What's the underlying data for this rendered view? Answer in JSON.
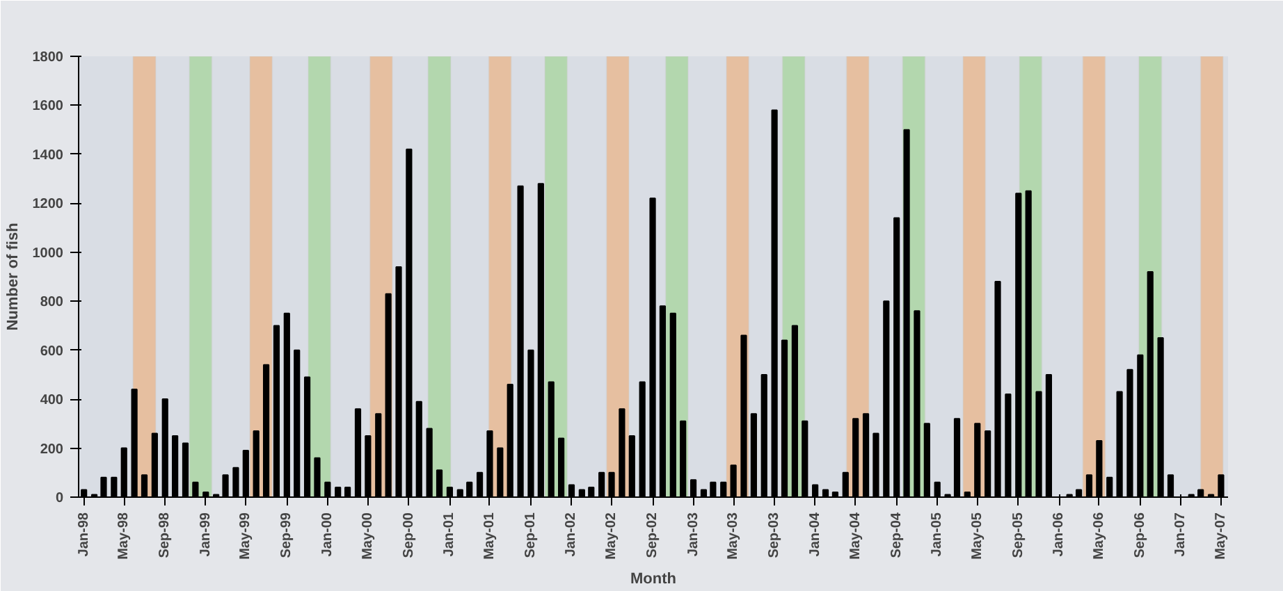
{
  "chart_data": {
    "type": "bar",
    "xlabel": "Month",
    "ylabel": "Number of fish",
    "grid": false,
    "x": [
      "1998-01",
      "1998-02",
      "1998-03",
      "1998-04",
      "1998-05",
      "1998-06",
      "1998-07",
      "1998-08",
      "1998-09",
      "1998-10",
      "1998-11",
      "1998-12",
      "1999-01",
      "1999-02",
      "1999-03",
      "1999-04",
      "1999-05",
      "1999-06",
      "1999-07",
      "1999-08",
      "1999-09",
      "1999-10",
      "1999-11",
      "1999-12",
      "2000-01",
      "2000-02",
      "2000-03",
      "2000-04",
      "2000-05",
      "2000-06",
      "2000-07",
      "2000-08",
      "2000-09",
      "2000-10",
      "2000-11",
      "2000-12",
      "2001-01",
      "2001-02",
      "2001-03",
      "2001-04",
      "2001-05",
      "2001-06",
      "2001-07",
      "2001-08",
      "2001-09",
      "2001-10",
      "2001-11",
      "2001-12",
      "2002-01",
      "2002-02",
      "2002-03",
      "2002-04",
      "2002-05",
      "2002-06",
      "2002-07",
      "2002-08",
      "2002-09",
      "2002-10",
      "2002-11",
      "2002-12",
      "2003-01",
      "2003-02",
      "2003-03",
      "2003-04",
      "2003-05",
      "2003-06",
      "2003-07",
      "2003-08",
      "2003-09",
      "2003-10",
      "2003-11",
      "2003-12",
      "2004-01",
      "2004-02",
      "2004-03",
      "2004-04",
      "2004-05",
      "2004-06",
      "2004-07",
      "2004-08",
      "2004-09",
      "2004-10",
      "2004-11",
      "2004-12",
      "2005-01",
      "2005-02",
      "2005-03",
      "2005-04",
      "2005-05",
      "2005-06",
      "2005-07",
      "2005-08",
      "2005-09",
      "2005-10",
      "2005-11",
      "2005-12",
      "2006-01",
      "2006-02",
      "2006-03",
      "2006-04",
      "2006-05",
      "2006-06",
      "2006-07",
      "2006-08",
      "2006-09",
      "2006-10",
      "2006-11",
      "2006-12",
      "2007-01",
      "2007-02",
      "2007-03",
      "2007-04",
      "2007-05"
    ],
    "series": [
      {
        "color": "#000000",
        "values": [
          30,
          10,
          80,
          80,
          200,
          440,
          90,
          260,
          400,
          250,
          220,
          60,
          20,
          10,
          90,
          120,
          190,
          270,
          540,
          700,
          750,
          600,
          490,
          160,
          60,
          40,
          40,
          360,
          250,
          340,
          830,
          940,
          1420,
          390,
          280,
          110,
          40,
          30,
          60,
          100,
          270,
          200,
          460,
          1270,
          600,
          1280,
          470,
          240,
          50,
          30,
          40,
          100,
          100,
          360,
          250,
          470,
          1220,
          780,
          750,
          310,
          70,
          30,
          60,
          60,
          130,
          660,
          340,
          500,
          1580,
          640,
          700,
          310,
          50,
          30,
          20,
          100,
          320,
          340,
          260,
          800,
          1140,
          1500,
          760,
          300,
          60,
          10,
          320,
          20,
          300,
          270,
          880,
          420,
          1240,
          1250,
          430,
          500,
          0,
          10,
          30,
          90,
          230,
          80,
          430,
          520,
          580,
          920,
          650,
          90,
          0,
          10,
          30,
          10,
          90
        ]
      }
    ],
    "xlim": [
      "1997-12-16",
      "2007-05-22"
    ],
    "xticks": [
      {
        "value": "1998-01",
        "label": "Jan-98"
      },
      {
        "value": "1998-05",
        "label": "May-98"
      },
      {
        "value": "1998-09",
        "label": "Sep-98"
      },
      {
        "value": "1999-01",
        "label": "Jan-99"
      },
      {
        "value": "1999-05",
        "label": "May-99"
      },
      {
        "value": "1999-09",
        "label": "Sep-99"
      },
      {
        "value": "2000-01",
        "label": "Jan-00"
      },
      {
        "value": "2000-05",
        "label": "May-00"
      },
      {
        "value": "2000-09",
        "label": "Sep-00"
      },
      {
        "value": "2001-01",
        "label": "Jan-01"
      },
      {
        "value": "2001-05",
        "label": "May-01"
      },
      {
        "value": "2001-09",
        "label": "Sep-01"
      },
      {
        "value": "2002-01",
        "label": "Jan-02"
      },
      {
        "value": "2002-05",
        "label": "May-02"
      },
      {
        "value": "2002-09",
        "label": "Sep-02"
      },
      {
        "value": "2003-01",
        "label": "Jan-03"
      },
      {
        "value": "2003-05",
        "label": "May-03"
      },
      {
        "value": "2003-09",
        "label": "Sep-03"
      },
      {
        "value": "2004-01",
        "label": "Jan-04"
      },
      {
        "value": "2004-05",
        "label": "May-04"
      },
      {
        "value": "2004-09",
        "label": "Sep-04"
      },
      {
        "value": "2005-01",
        "label": "Jan-05"
      },
      {
        "value": "2005-05",
        "label": "May-05"
      },
      {
        "value": "2005-09",
        "label": "Sep-05"
      },
      {
        "value": "2006-01",
        "label": "Jan-06"
      },
      {
        "value": "2006-05",
        "label": "May-06"
      },
      {
        "value": "2006-09",
        "label": "Sep-06"
      },
      {
        "value": "2007-01",
        "label": "Jan-07"
      },
      {
        "value": "2007-05",
        "label": "May-07"
      }
    ],
    "ylim": [
      0,
      1800
    ],
    "yticks": [
      0,
      200,
      400,
      600,
      800,
      1000,
      1200,
      1400,
      1600,
      1800
    ],
    "bands": [
      {
        "axis": "x",
        "from": "1998-05-28",
        "to": "1998-08-04",
        "color": "#e8b88e"
      },
      {
        "axis": "x",
        "from": "1998-11-13",
        "to": "1999-01-19",
        "color": "#a9d6a0"
      },
      {
        "axis": "x",
        "from": "1999-05-13",
        "to": "1999-07-19",
        "color": "#e8b88e"
      },
      {
        "axis": "x",
        "from": "1999-11-04",
        "to": "2000-01-10",
        "color": "#a9d6a0"
      },
      {
        "axis": "x",
        "from": "2000-05-07",
        "to": "2000-07-13",
        "color": "#e8b88e"
      },
      {
        "axis": "x",
        "from": "2000-10-28",
        "to": "2001-01-04",
        "color": "#a9d6a0"
      },
      {
        "axis": "x",
        "from": "2001-04-28",
        "to": "2001-07-04",
        "color": "#e8b88e"
      },
      {
        "axis": "x",
        "from": "2001-10-13",
        "to": "2001-12-19",
        "color": "#a9d6a0"
      },
      {
        "axis": "x",
        "from": "2002-04-16",
        "to": "2002-06-22",
        "color": "#e8b88e"
      },
      {
        "axis": "x",
        "from": "2002-10-10",
        "to": "2002-12-16",
        "color": "#a9d6a0"
      },
      {
        "axis": "x",
        "from": "2003-04-10",
        "to": "2003-06-16",
        "color": "#e8b88e"
      },
      {
        "axis": "x",
        "from": "2003-09-25",
        "to": "2003-12-01",
        "color": "#a9d6a0"
      },
      {
        "axis": "x",
        "from": "2004-04-04",
        "to": "2004-06-10",
        "color": "#e8b88e"
      },
      {
        "axis": "x",
        "from": "2004-09-19",
        "to": "2004-11-25",
        "color": "#a9d6a0"
      },
      {
        "axis": "x",
        "from": "2005-03-19",
        "to": "2005-05-25",
        "color": "#e8b88e"
      },
      {
        "axis": "x",
        "from": "2005-09-04",
        "to": "2005-11-10",
        "color": "#a9d6a0"
      },
      {
        "axis": "x",
        "from": "2006-03-13",
        "to": "2006-05-19",
        "color": "#e8b88e"
      },
      {
        "axis": "x",
        "from": "2006-08-28",
        "to": "2006-11-04",
        "color": "#a9d6a0"
      },
      {
        "axis": "x",
        "from": "2007-03-01",
        "to": "2007-05-07",
        "color": "#e8b88e"
      }
    ]
  }
}
